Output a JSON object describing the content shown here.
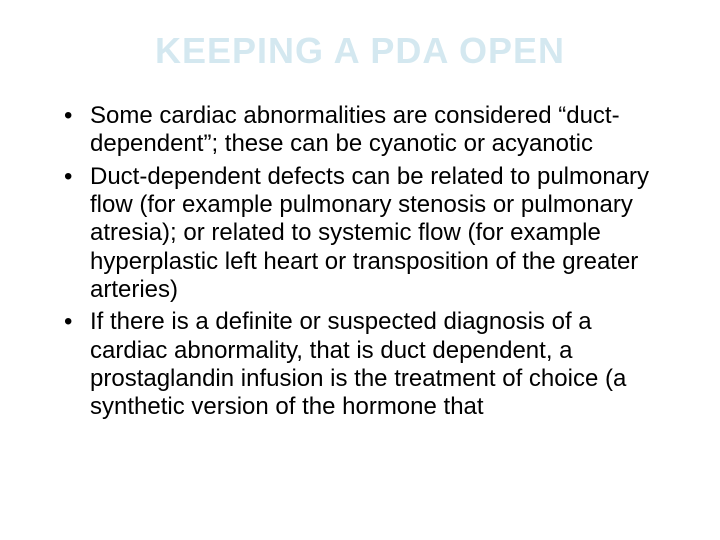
{
  "slide": {
    "title": "KEEPING A PDA OPEN",
    "title_color": "#d4e8f0",
    "title_fontsize": 36,
    "body_color": "#000000",
    "body_fontsize": 24,
    "line_height": 1.18,
    "background": "#ffffff",
    "bullets": [
      "Some cardiac abnormalities are considered “duct-dependent”; these can be cyanotic or acyanotic",
      "Duct-dependent defects can be related to pulmonary flow (for example pulmonary stenosis or pulmonary atresia); or related to systemic flow (for example hyperplastic left heart or transposition of the greater arteries)",
      "If there is a definite or suspected diagnosis of a cardiac abnormality, that is duct dependent, a prostaglandin infusion is the treatment of choice (a synthetic version of the hormone that"
    ]
  }
}
